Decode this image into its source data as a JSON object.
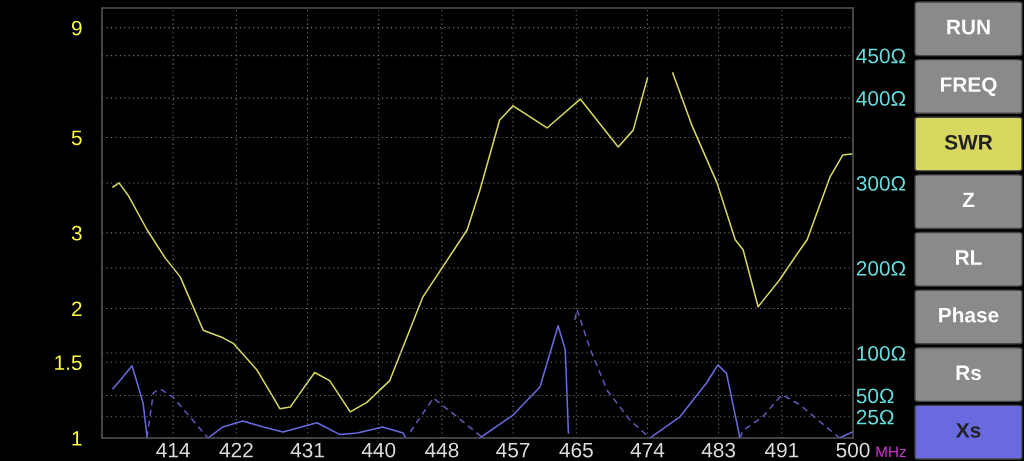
{
  "chart_data": {
    "type": "line",
    "xlabel": "MHz",
    "xlim": [
      405,
      500
    ],
    "xticks": [
      414,
      422,
      431,
      440,
      448,
      457,
      465,
      474,
      483,
      491,
      500
    ],
    "log": "y",
    "ylim": [
      1,
      10
    ],
    "yticks": [
      1,
      1.5,
      2,
      3,
      5,
      9
    ],
    "y2lim": [
      0,
      506
    ],
    "y2ticks": [
      {
        "value": 25,
        "label": "25Ω"
      },
      {
        "value": 50,
        "label": "50Ω"
      },
      {
        "value": 100,
        "label": "100Ω"
      },
      {
        "value": 200,
        "label": "200Ω"
      },
      {
        "value": 300,
        "label": "300Ω"
      },
      {
        "value": 400,
        "label": "400Ω"
      },
      {
        "value": 450,
        "label": "450Ω"
      }
    ],
    "grid": true,
    "legend": "right",
    "marker": "none",
    "annotations": [
      "RUN",
      "FREQ",
      "Z",
      "RL",
      "Phase",
      "Rs"
    ],
    "series": [
      {
        "name": "SWR",
        "color": "#d8d860",
        "line_style": "solid",
        "x": [
          406.4,
          407.15,
          408.3,
          410.7,
          413.0,
          414.9,
          417.8,
          420.3,
          421.6,
          424.6,
          427.5,
          428.8,
          431.9,
          433.8,
          436.4,
          438.5,
          441.4,
          445.6,
          448.1,
          451.2,
          452.8,
          455.3,
          457.0,
          461.3,
          465.5,
          470.3,
          472.2,
          474.0,
          475.5,
          477.2,
          479.7,
          482.8,
          485.1,
          486.1,
          488.0,
          490.7,
          493.3,
          494.2,
          497.1,
          498.7,
          499.9
        ],
        "values": [
          3.83,
          3.92,
          3.67,
          3.05,
          2.62,
          2.37,
          1.78,
          1.71,
          1.66,
          1.44,
          1.17,
          1.18,
          1.42,
          1.36,
          1.15,
          1.21,
          1.36,
          2.13,
          2.5,
          3.05,
          3.77,
          5.49,
          5.92,
          5.26,
          6.14,
          4.75,
          5.2,
          6.87,
          null,
          7.06,
          5.29,
          3.92,
          2.89,
          2.74,
          2.02,
          2.33,
          2.74,
          2.89,
          4.05,
          4.55,
          4.58
        ]
      },
      {
        "name": "Xs",
        "color": "#6a6ae0",
        "axis": "y2",
        "line_style": "solid",
        "x": [
          406.4,
          408.8,
          410.2,
          410.7,
          414.0,
          418.4,
          420.3,
          422.8,
          425.4,
          427.9,
          432.2,
          435.1,
          437.3,
          440.5,
          443.1,
          443.4,
          448.0,
          452.8,
          457.0,
          460.4,
          462.7,
          463.6,
          464.0,
          470.0,
          474.3,
          478.1,
          481.5,
          482.9,
          484.0,
          485.7,
          492.0,
          498.3,
          499.9
        ],
        "values": [
          58,
          85,
          41,
          1,
          null,
          0,
          13,
          20,
          13,
          7,
          18,
          4,
          6,
          13,
          6,
          0,
          null,
          0,
          27,
          60,
          132,
          104,
          6,
          null,
          0,
          25,
          65,
          86,
          76,
          0,
          null,
          0,
          7
        ]
      },
      {
        "color": "#5a5ab8",
        "axis": "y2",
        "line_style": "dashed",
        "x": [
          410.7,
          411.5,
          412.3,
          414.0,
          416.1,
          418.4,
          430.0,
          444.0,
          446.9,
          449.9,
          453.2,
          460.0,
          464.8,
          465.1,
          466.7,
          468.9,
          471.8,
          474.3,
          480.0,
          485.7,
          486.1,
          488.6,
          491.0,
          493.3,
          498.3
        ],
        "values": [
          1,
          53,
          58,
          48,
          25,
          0,
          null,
          7,
          47,
          25,
          0,
          null,
          139,
          151,
          106,
          56,
          21,
          0,
          null,
          0,
          9,
          25,
          51,
          39,
          0
        ]
      }
    ]
  }
}
